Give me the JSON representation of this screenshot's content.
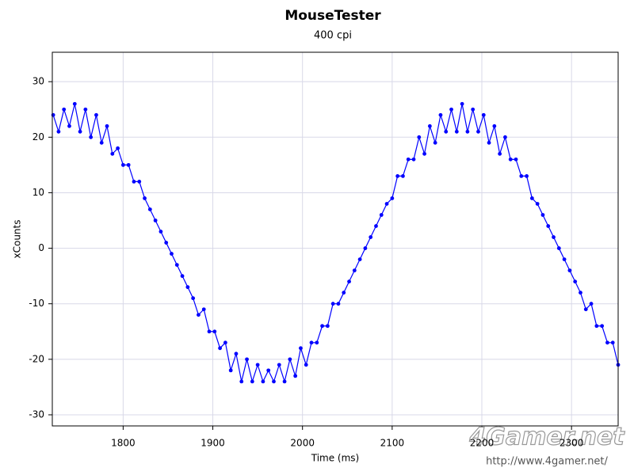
{
  "chart_data": {
    "type": "line",
    "title": "MouseTester",
    "subtitle": "400 cpi",
    "x_label": "Time (ms)",
    "y_label": "xCounts",
    "xlim": [
      1721,
      2352
    ],
    "ylim": [
      -32,
      35.3
    ],
    "xticks": [
      1800,
      1900,
      2000,
      2100,
      2200,
      2300
    ],
    "yticks": [
      -30,
      -20,
      -10,
      0,
      10,
      20,
      30
    ],
    "grid": true,
    "markers": true,
    "x": [
      1722,
      1728,
      1734,
      1740,
      1746,
      1752,
      1758,
      1764,
      1770,
      1776,
      1782,
      1788,
      1794,
      1800,
      1806,
      1812,
      1818,
      1824,
      1830,
      1836,
      1842,
      1848,
      1854,
      1860,
      1866,
      1872,
      1878,
      1884,
      1890,
      1896,
      1902,
      1908,
      1914,
      1920,
      1926,
      1932,
      1938,
      1944,
      1950,
      1956,
      1962,
      1968,
      1974,
      1980,
      1986,
      1992,
      1998,
      2004,
      2010,
      2016,
      2022,
      2028,
      2034,
      2040,
      2046,
      2052,
      2058,
      2064,
      2070,
      2076,
      2082,
      2088,
      2094,
      2100,
      2106,
      2112,
      2118,
      2124,
      2130,
      2136,
      2142,
      2148,
      2154,
      2160,
      2166,
      2172,
      2178,
      2184,
      2190,
      2196,
      2202,
      2208,
      2214,
      2220,
      2226,
      2232,
      2238,
      2244,
      2250,
      2256,
      2262,
      2268,
      2274,
      2280,
      2286,
      2292,
      2298,
      2304,
      2310,
      2316,
      2322,
      2328,
      2334,
      2340,
      2346,
      2352
    ],
    "series": [
      {
        "name": "xCounts",
        "color": "#0000ff",
        "values": [
          24,
          21,
          25,
          22,
          26,
          21,
          25,
          20,
          24,
          19,
          22,
          17,
          18,
          15,
          15,
          12,
          12,
          9,
          7,
          5,
          3,
          1,
          -1,
          -3,
          -5,
          -7,
          -9,
          -12,
          -11,
          -15,
          -15,
          -18,
          -17,
          -22,
          -19,
          -24,
          -20,
          -24,
          -21,
          -24,
          -22,
          -24,
          -21,
          -24,
          -20,
          -23,
          -18,
          -21,
          -17,
          -17,
          -14,
          -14,
          -10,
          -10,
          -8,
          -6,
          -4,
          -2,
          0,
          2,
          4,
          6,
          8,
          9,
          13,
          13,
          16,
          16,
          20,
          17,
          22,
          19,
          24,
          21,
          25,
          21,
          26,
          21,
          25,
          21,
          24,
          19,
          22,
          17,
          20,
          16,
          16,
          13,
          13,
          9,
          8,
          6,
          4,
          2,
          0,
          -2,
          -4,
          -6,
          -8,
          -11,
          -10,
          -14,
          -14,
          -17,
          -17,
          -21
        ]
      }
    ]
  },
  "watermark": {
    "logo": "4Gamer.net",
    "url": "http://www.4gamer.net/"
  }
}
